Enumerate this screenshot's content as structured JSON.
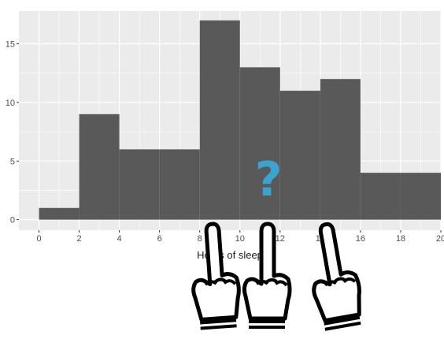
{
  "chart_data": {
    "type": "histogram",
    "bins": [
      {
        "x0": 0,
        "x1": 2,
        "count": 1
      },
      {
        "x0": 2,
        "x1": 4,
        "count": 9
      },
      {
        "x0": 4,
        "x1": 6,
        "count": 6
      },
      {
        "x0": 6,
        "x1": 8,
        "count": 6
      },
      {
        "x0": 8,
        "x1": 10,
        "count": 17
      },
      {
        "x0": 10,
        "x1": 12,
        "count": 13
      },
      {
        "x0": 12,
        "x1": 14,
        "count": 11
      },
      {
        "x0": 14,
        "x1": 16,
        "count": 12
      },
      {
        "x0": 16,
        "x1": 18,
        "count": 4
      },
      {
        "x0": 18,
        "x1": 20,
        "count": 4
      }
    ],
    "xlabel": "Hours of sleep",
    "ylabel": "",
    "xticks": [
      0,
      2,
      4,
      6,
      8,
      10,
      12,
      14,
      16,
      18,
      20
    ],
    "yticks": [
      0,
      5,
      10,
      15
    ],
    "xlim": [
      -1,
      20
    ],
    "ylim": [
      -0.9,
      17.8
    ],
    "grid": true,
    "bar_color": "#595959",
    "panel_color": "#ebebeb",
    "grid_color": "#ffffff"
  },
  "overlay": {
    "question_mark": "?",
    "question_color": "#3aa3cf",
    "pointing_hand_icons": [
      "pointing-hand-icon",
      "pointing-hand-icon",
      "pointing-hand-icon"
    ]
  }
}
